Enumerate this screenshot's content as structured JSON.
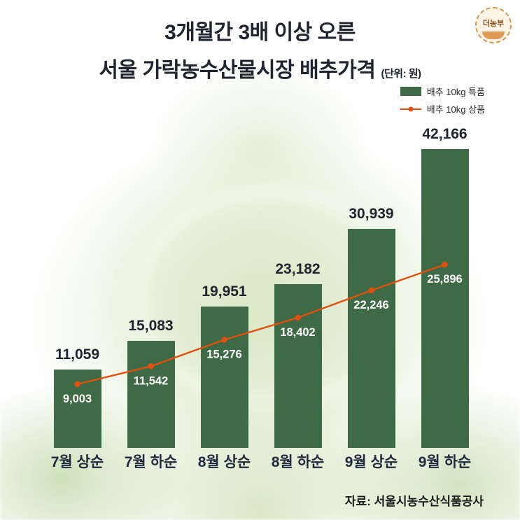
{
  "page": {
    "title_line1": "3개월간 3배 이상 오른",
    "title_line2": "서울 가락농수산물시장 배추가격",
    "unit_label": "(단위: 원)",
    "badge_text": "더농부",
    "source": "자료: 서울시농수산식품공사"
  },
  "legend": {
    "bar_label": "배추 10kg 특품",
    "line_label": "배추 10kg 상품"
  },
  "colors": {
    "bar": "#3e6b46",
    "line": "#e0500f",
    "title": "#20242e",
    "axis_label": "#1f2b3d",
    "line_label_text": "#ffffff"
  },
  "chart_data": {
    "type": "bar",
    "title": "서울 가락농수산물시장 배추가격",
    "subtitle": "3개월간 3배 이상 오른",
    "unit": "원",
    "categories": [
      "7월 상순",
      "7월 하순",
      "8월 상순",
      "8월 하순",
      "9월 상순",
      "9월 하순"
    ],
    "series": [
      {
        "name": "배추 10kg 특품",
        "type": "bar",
        "values": [
          11059,
          15083,
          19951,
          23182,
          30939,
          42166
        ]
      },
      {
        "name": "배추 10kg 상품",
        "type": "line",
        "values": [
          9003,
          11542,
          15276,
          18402,
          22246,
          25896
        ]
      }
    ],
    "ylim": [
      0,
      43500
    ],
    "grid": false,
    "legend_position": "top-right",
    "source": "자료: 서울시농수산식품공사"
  }
}
